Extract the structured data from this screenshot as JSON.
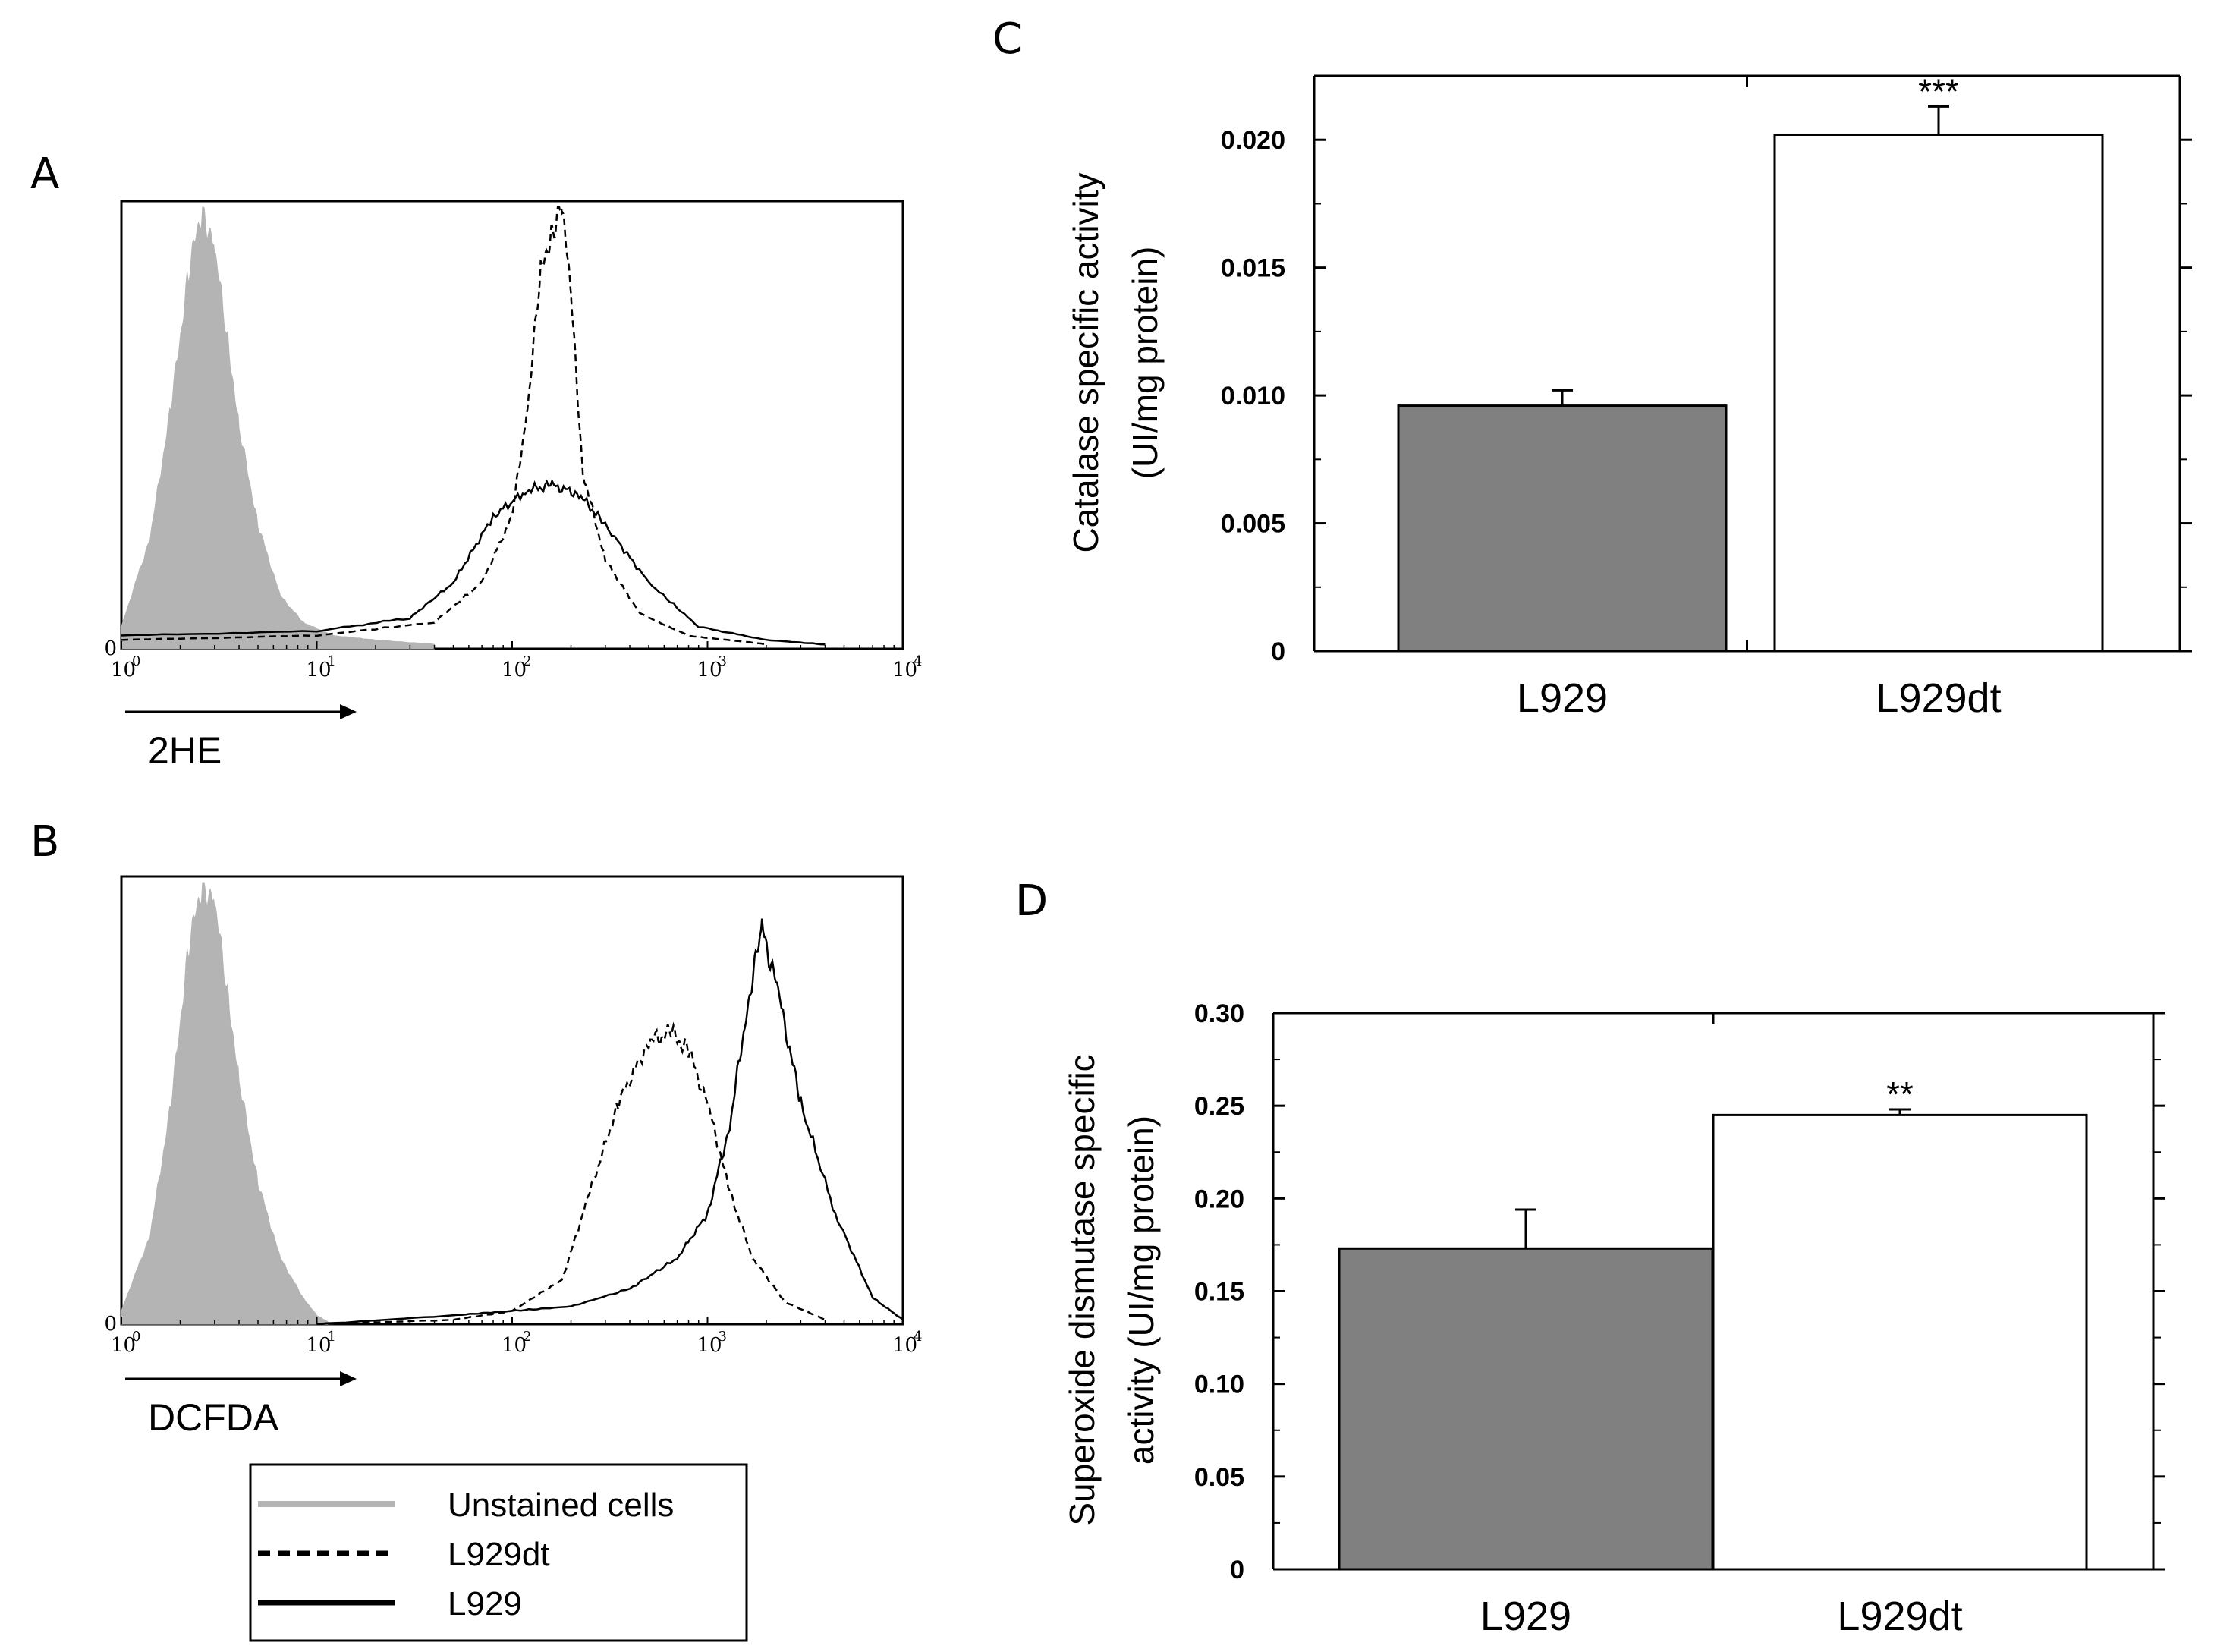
{
  "panels": {
    "A": "A",
    "B": "B",
    "C": "C",
    "D": "D"
  },
  "legend": [
    {
      "label": "Unstained cells",
      "style": "solid",
      "color": "#b4b4b4"
    },
    {
      "label": "L929dt",
      "style": "dashed",
      "color": "#000000"
    },
    {
      "label": "L929",
      "style": "solid",
      "color": "#000000"
    }
  ],
  "chart_data": [
    {
      "panel": "A",
      "type": "area",
      "x_scale": "log",
      "xlim": [
        1,
        10000
      ],
      "xticks": [
        {
          "base": "10",
          "exp": "0"
        },
        {
          "base": "10",
          "exp": "1"
        },
        {
          "base": "10",
          "exp": "2"
        },
        {
          "base": "10",
          "exp": "3"
        },
        {
          "base": "10",
          "exp": "4"
        }
      ],
      "y_origin_label": "0",
      "xlabel": "2HE",
      "series": [
        {
          "name": "Unstained cells",
          "style": "filled",
          "color": "#b4b4b4",
          "x": [
            1,
            1.4,
            1.8,
            2.2,
            2.6,
            3.0,
            3.5,
            4.0,
            5.0,
            6.5,
            8.5,
            12,
            20,
            40
          ],
          "y": [
            0.05,
            0.25,
            0.55,
            0.85,
            1.0,
            0.9,
            0.7,
            0.5,
            0.28,
            0.12,
            0.06,
            0.03,
            0.02,
            0.01
          ]
        },
        {
          "name": "L929dt",
          "style": "dashed",
          "color": "#000000",
          "x": [
            1,
            10,
            40,
            70,
            100,
            120,
            140,
            160,
            180,
            200,
            230,
            300,
            450,
            800,
            2000
          ],
          "y": [
            0.02,
            0.03,
            0.06,
            0.15,
            0.3,
            0.55,
            0.85,
            0.95,
            1.0,
            0.8,
            0.4,
            0.2,
            0.08,
            0.03,
            0.01
          ]
        },
        {
          "name": "L929",
          "style": "solid",
          "color": "#000000",
          "x": [
            1,
            10,
            30,
            50,
            80,
            120,
            160,
            220,
            300,
            500,
            900,
            2000,
            4000
          ],
          "y": [
            0.03,
            0.04,
            0.07,
            0.15,
            0.3,
            0.36,
            0.37,
            0.35,
            0.28,
            0.15,
            0.05,
            0.02,
            0.01
          ]
        }
      ]
    },
    {
      "panel": "B",
      "type": "area",
      "x_scale": "log",
      "xlim": [
        1,
        10000
      ],
      "xticks": [
        {
          "base": "10",
          "exp": "0"
        },
        {
          "base": "10",
          "exp": "1"
        },
        {
          "base": "10",
          "exp": "2"
        },
        {
          "base": "10",
          "exp": "3"
        },
        {
          "base": "10",
          "exp": "4"
        }
      ],
      "y_origin_label": "0",
      "xlabel": "DCFDA",
      "series": [
        {
          "name": "Unstained cells",
          "style": "filled",
          "color": "#b4b4b4",
          "x": [
            1,
            1.4,
            1.8,
            2.2,
            2.6,
            3.0,
            3.5,
            4.0,
            5.0,
            6.5,
            8.5,
            10,
            12
          ],
          "y": [
            0.03,
            0.2,
            0.5,
            0.85,
            1.0,
            0.95,
            0.75,
            0.55,
            0.32,
            0.15,
            0.06,
            0.02,
            0.0
          ]
        },
        {
          "name": "L929dt",
          "style": "dashed",
          "color": "#000000",
          "x": [
            10,
            50,
            100,
            180,
            250,
            350,
            500,
            650,
            800,
            1000,
            1300,
            1700,
            2500,
            4000
          ],
          "y": [
            0.0,
            0.01,
            0.03,
            0.1,
            0.3,
            0.5,
            0.64,
            0.66,
            0.62,
            0.5,
            0.3,
            0.15,
            0.05,
            0.01
          ]
        },
        {
          "name": "L929",
          "style": "solid",
          "color": "#000000",
          "x": [
            10,
            50,
            100,
            200,
            400,
            700,
            1000,
            1300,
            1600,
            1900,
            2300,
            3000,
            4500,
            7000,
            10000
          ],
          "y": [
            0.0,
            0.02,
            0.03,
            0.04,
            0.08,
            0.15,
            0.25,
            0.45,
            0.72,
            0.9,
            0.75,
            0.5,
            0.25,
            0.06,
            0.01
          ]
        }
      ]
    },
    {
      "panel": "C",
      "type": "bar",
      "categories": [
        "L929",
        "L929dt"
      ],
      "values": [
        0.0096,
        0.0202
      ],
      "errors": [
        0.0006,
        0.0011
      ],
      "significance": [
        "",
        "***"
      ],
      "bar_colors": [
        "#808080",
        "#ffffff"
      ],
      "ylabel_line1": "Catalase specific activity",
      "ylabel_line2": "(UI/mg protein)",
      "ylim": [
        0,
        0.0225
      ],
      "yticks": [
        0,
        0.005,
        0.01,
        0.015,
        0.02
      ],
      "ytick_labels": [
        "0",
        "0.005",
        "0.010",
        "0.015",
        "0.020"
      ]
    },
    {
      "panel": "D",
      "type": "bar",
      "categories": [
        "L929",
        "L929dt"
      ],
      "values": [
        0.173,
        0.245
      ],
      "errors": [
        0.021,
        0.003
      ],
      "significance": [
        "",
        "**"
      ],
      "bar_colors": [
        "#808080",
        "#ffffff"
      ],
      "ylabel_line1": "Superoxide dismutase specific",
      "ylabel_line2": "activity (UI/mg protein)",
      "ylim": [
        0,
        0.3
      ],
      "yticks": [
        0,
        0.05,
        0.1,
        0.15,
        0.2,
        0.25,
        0.3
      ],
      "ytick_labels": [
        "0",
        "0.05",
        "0.10",
        "0.15",
        "0.20",
        "0.25",
        "0.30"
      ]
    }
  ]
}
